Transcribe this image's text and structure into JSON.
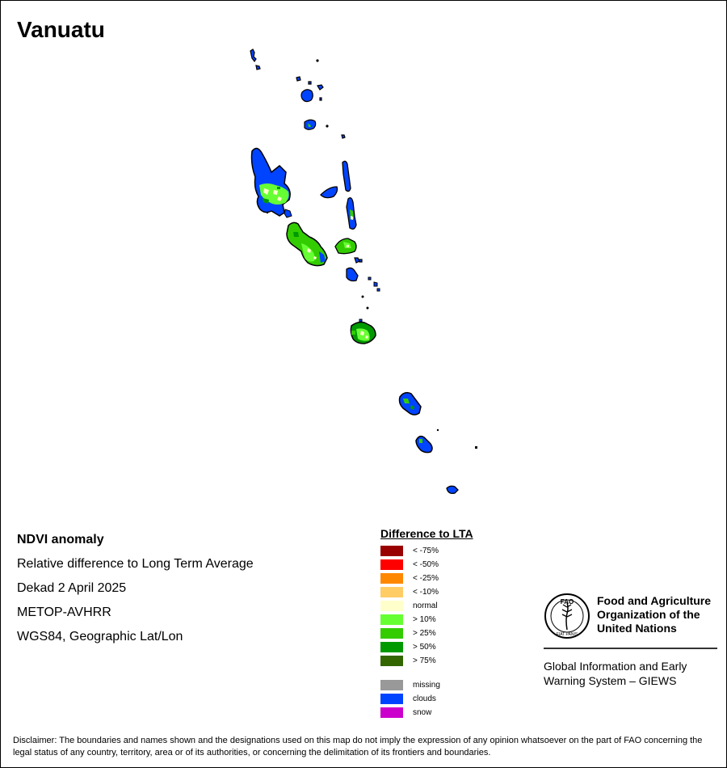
{
  "map": {
    "title": "Vanuatu",
    "metadata": [
      "NDVI anomaly",
      "Relative difference to Long Term Average",
      "Dekad 2 April 2025",
      "METOP-AVHRR",
      "WGS84, Geographic Lat/Lon"
    ]
  },
  "legend": {
    "title": "Difference to LTA",
    "classes": [
      {
        "label": "< -75%",
        "color": "#990000"
      },
      {
        "label": "< -50%",
        "color": "#ff0000"
      },
      {
        "label": "< -25%",
        "color": "#ff8800"
      },
      {
        "label": "< -10%",
        "color": "#ffcc66"
      },
      {
        "label": "normal",
        "color": "#ffffcc"
      },
      {
        "label": "> 10%",
        "color": "#66ff33"
      },
      {
        "label": "> 25%",
        "color": "#33cc00"
      },
      {
        "label": "> 50%",
        "color": "#009900"
      },
      {
        "label": "> 75%",
        "color": "#336600"
      }
    ],
    "special": [
      {
        "label": "missing",
        "color": "#999999"
      },
      {
        "label": "clouds",
        "color": "#0044ff"
      },
      {
        "label": "snow",
        "color": "#cc00cc"
      }
    ]
  },
  "organization": {
    "name_lines": [
      "Food and Agriculture",
      "Organization of the",
      "United Nations"
    ],
    "emblem_letters": "FAO",
    "emblem_motto": "FIAT PANIS",
    "program_lines": [
      "Global Information and Early",
      "Warning System – GIEWS"
    ]
  },
  "disclaimer": "Disclaimer: The boundaries and names shown and the designations used on this map do not imply the expression of any opinion whatsoever on the part of FAO concerning the legal status of any country, territory, area or of its authorities, or concerning the delimitation of its frontiers and boundaries.",
  "colors": {
    "clouds": "#0044ff",
    "green_10": "#66ff33",
    "green_25": "#33cc00",
    "green_50": "#009900",
    "normal": "#ffffcc",
    "outline": "#000000"
  }
}
